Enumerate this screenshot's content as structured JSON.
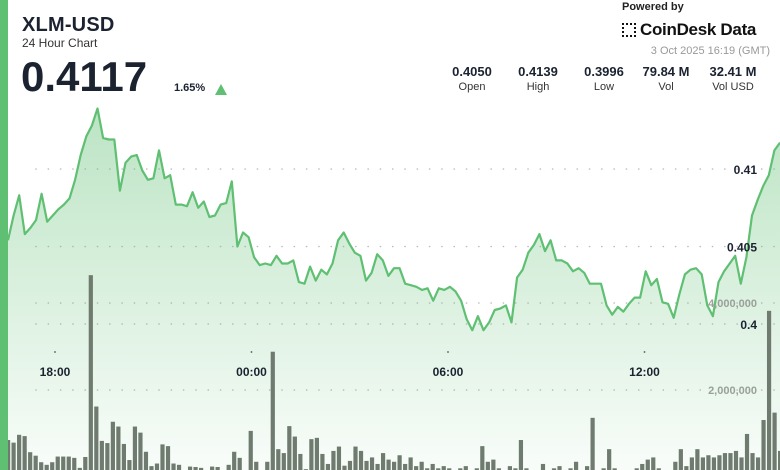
{
  "header": {
    "title": "XLM-USD",
    "subtitle": "24 Hour Chart",
    "price": "0.4117",
    "change": "1.65%",
    "change_direction": "up",
    "powered_by": "Powered by",
    "brand": "CoinDesk Data",
    "date": "3 Oct 2025 16:19 (GMT)"
  },
  "stats": [
    {
      "value": "0.4050",
      "label": "Open"
    },
    {
      "value": "0.4139",
      "label": "High"
    },
    {
      "value": "0.3996",
      "label": "Low"
    },
    {
      "value": "79.84 M",
      "label": "Vol"
    },
    {
      "value": "32.41 M",
      "label": "Vol USD"
    }
  ],
  "colors": {
    "accent": "#5fbf72",
    "line": "#5fbf72",
    "volume": "#6f7b6f"
  },
  "chart_data": {
    "type": "line",
    "title": "XLM-USD 24 Hour Chart",
    "x_tick_labels": [
      "18:00",
      "00:00",
      "06:00",
      "12:00"
    ],
    "price_ticks": [
      0.4,
      0.405,
      0.41
    ],
    "price_tick_labels": [
      "0.4",
      "0.405",
      "0.41"
    ],
    "volume_ticks": [
      2000000,
      4000000
    ],
    "volume_tick_labels": [
      "2,000,000",
      "4,000,000"
    ],
    "grid": true,
    "series": [
      {
        "name": "price",
        "type": "area",
        "values": [
          0.4054,
          0.407,
          0.4083,
          0.4058,
          0.4062,
          0.4067,
          0.4084,
          0.4066,
          0.407,
          0.4074,
          0.4077,
          0.4081,
          0.4093,
          0.4109,
          0.4121,
          0.4128,
          0.4139,
          0.412,
          0.4119,
          0.4119,
          0.4086,
          0.4104,
          0.4108,
          0.4109,
          0.4099,
          0.4093,
          0.4094,
          0.4112,
          0.4094,
          0.4096,
          0.4077,
          0.4077,
          0.4076,
          0.4085,
          0.4075,
          0.4079,
          0.4069,
          0.407,
          0.4077,
          0.4078,
          0.4092,
          0.405,
          0.4059,
          0.4056,
          0.4043,
          0.4038,
          0.4039,
          0.4038,
          0.4044,
          0.4039,
          0.4039,
          0.4041,
          0.4027,
          0.4026,
          0.4037,
          0.4028,
          0.4035,
          0.4032,
          0.4039,
          0.4054,
          0.4059,
          0.4052,
          0.4046,
          0.4044,
          0.4028,
          0.4033,
          0.4045,
          0.4041,
          0.4031,
          0.4036,
          0.4036,
          0.4026,
          0.4025,
          0.4024,
          0.4022,
          0.4023,
          0.4015,
          0.4023,
          0.4022,
          0.4024,
          0.4021,
          0.4015,
          0.4003,
          0.3996,
          0.4005,
          0.3996,
          0.4001,
          0.4009,
          0.401,
          0.4012,
          0.4001,
          0.403,
          0.4035,
          0.4046,
          0.4051,
          0.4058,
          0.4047,
          0.4054,
          0.4041,
          0.4041,
          0.4039,
          0.4034,
          0.4036,
          0.4033,
          0.4026,
          0.4026,
          0.4026,
          0.4012,
          0.4006,
          0.4011,
          0.4008,
          0.4013,
          0.4017,
          0.4017,
          0.4034,
          0.4025,
          0.4029,
          0.4014,
          0.4013,
          0.4004,
          0.4019,
          0.4032,
          0.4035,
          0.4036,
          0.4032,
          0.4012,
          0.4005,
          0.4027,
          0.4034,
          0.4039,
          0.4044,
          0.4026,
          0.4043,
          0.407,
          0.408,
          0.4089,
          0.4096,
          0.4112,
          0.4117
        ]
      },
      {
        "name": "volume",
        "type": "bar",
        "unit": "millions",
        "values": [
          0.85,
          0.79,
          0.97,
          0.94,
          0.57,
          0.49,
          0.34,
          0.28,
          0.34,
          0.47,
          0.47,
          0.47,
          0.44,
          0.21,
          0.46,
          4.64,
          1.62,
          0.83,
          0.78,
          1.27,
          1.16,
          0.76,
          0.39,
          1.16,
          1.02,
          0.58,
          0.25,
          0.31,
          0.75,
          0.71,
          0.31,
          0.28,
          0.16,
          0.24,
          0.23,
          0.21,
          0.16,
          0.24,
          0.23,
          0.16,
          0.28,
          0.58,
          0.44,
          0.16,
          1.06,
          0.35,
          0.16,
          0.35,
          2.88,
          0.64,
          0.55,
          1.17,
          0.93,
          0.53,
          0.18,
          0.87,
          0.9,
          0.53,
          0.3,
          0.6,
          0.7,
          0.26,
          0.37,
          0.7,
          0.6,
          0.37,
          0.45,
          0.3,
          0.55,
          0.4,
          0.35,
          0.5,
          0.3,
          0.45,
          0.25,
          0.35,
          0.2,
          0.3,
          0.2,
          0.25,
          0.2,
          0.15,
          0.2,
          0.25,
          0.15,
          0.2,
          0.71,
          0.35,
          0.4,
          0.2,
          0.15,
          0.25,
          0.2,
          0.85,
          0.2,
          0.15,
          0.1,
          0.3,
          0.15,
          0.2,
          0.25,
          0.15,
          0.2,
          0.35,
          0.15,
          0.25,
          1.36,
          0.15,
          0.2,
          0.64,
          0.2,
          0.15,
          0.1,
          0.15,
          0.2,
          0.3,
          0.4,
          0.45,
          0.2,
          0.1,
          0.15,
          0.35,
          0.64,
          0.25,
          0.45,
          0.64,
          0.45,
          0.5,
          0.45,
          0.5,
          0.55,
          0.55,
          0.6,
          0.45,
          0.99,
          0.55,
          0.45,
          1.31,
          3.82,
          1.48,
          0.6
        ]
      }
    ]
  }
}
